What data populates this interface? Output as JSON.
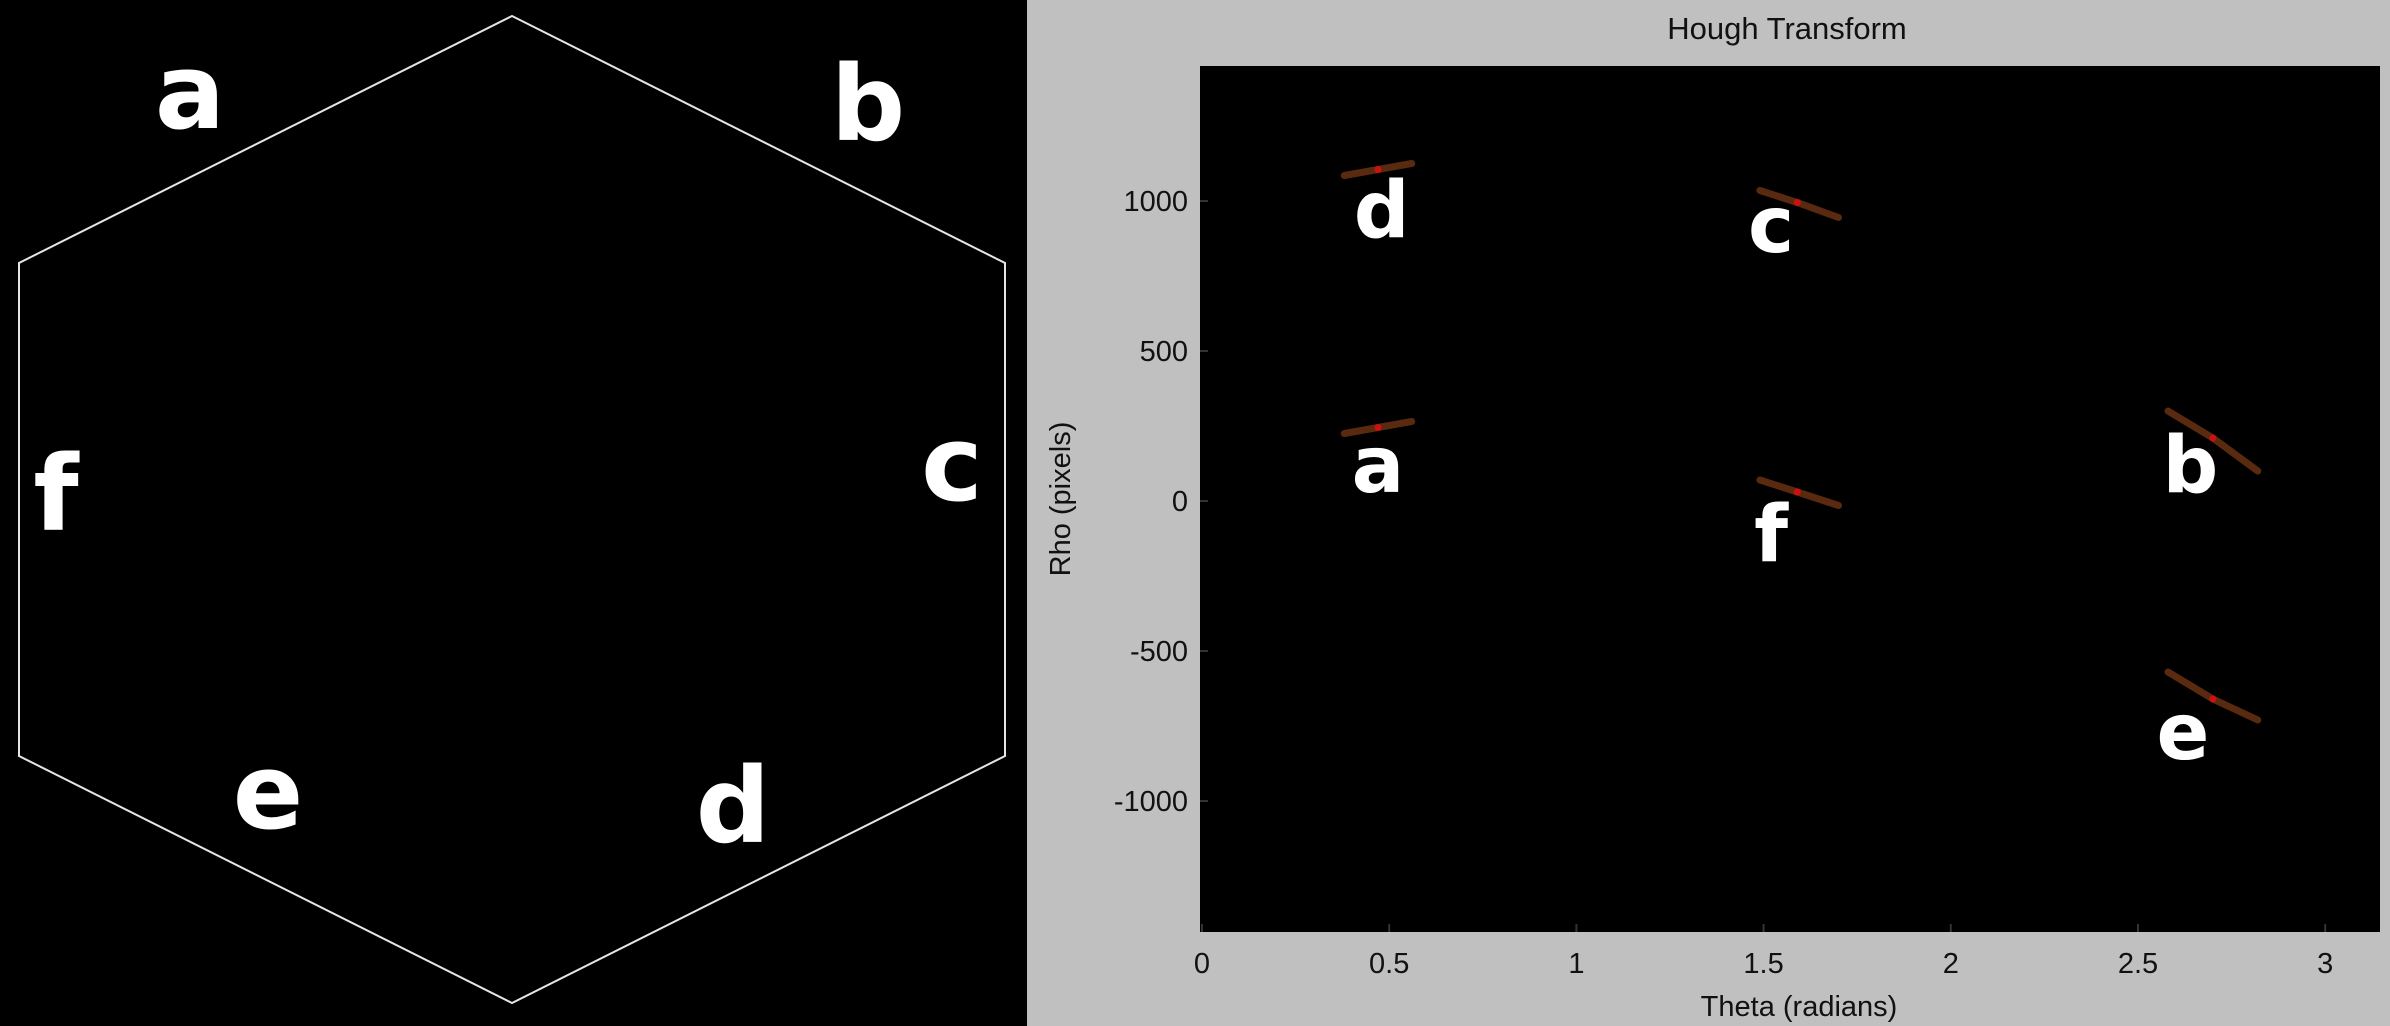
{
  "colors": {
    "background": "#000000",
    "hexagon_stroke": "#e6e6e6",
    "figure_frame": "#c0c0c0",
    "plot_background": "#000000",
    "label_color": "#ffffff",
    "curve_color": "#5a2a10",
    "peak_color": "#d01010",
    "axis_text": "#111111"
  },
  "hexagon": {
    "side_labels": [
      {
        "id": "a",
        "text": "a"
      },
      {
        "id": "b",
        "text": "b"
      },
      {
        "id": "c",
        "text": "c"
      },
      {
        "id": "d",
        "text": "d"
      },
      {
        "id": "e",
        "text": "e"
      },
      {
        "id": "f",
        "text": "f"
      }
    ]
  },
  "chart_data": {
    "type": "scatter",
    "title": "Hough Transform",
    "xlabel": "Theta (radians)",
    "ylabel": "Rho (pixels)",
    "xlim": [
      0,
      3.14
    ],
    "ylim": [
      -1430,
      1430
    ],
    "xticks": [
      0,
      0.5,
      1,
      1.5,
      2,
      2.5,
      3
    ],
    "xtick_labels": [
      "0",
      "0.5",
      "1",
      "1.5",
      "2",
      "2.5",
      "3"
    ],
    "yticks": [
      1000,
      500,
      0,
      -500,
      -1000
    ],
    "ytick_labels": [
      "1000",
      "500",
      "0",
      "-500",
      "-1000"
    ],
    "grid": false,
    "series": [
      {
        "name": "d",
        "points": [
          [
            0.38,
            1085
          ],
          [
            0.47,
            1105
          ],
          [
            0.56,
            1125
          ]
        ],
        "peak": [
          0.47,
          1105
        ],
        "label_at": [
          0.48,
          880
        ]
      },
      {
        "name": "c",
        "points": [
          [
            1.49,
            1035
          ],
          [
            1.59,
            995
          ],
          [
            1.7,
            945
          ]
        ],
        "peak": [
          1.59,
          995
        ],
        "label_at": [
          1.52,
          830
        ]
      },
      {
        "name": "a",
        "points": [
          [
            0.38,
            225
          ],
          [
            0.47,
            245
          ],
          [
            0.56,
            265
          ]
        ],
        "peak": [
          0.47,
          245
        ],
        "label_at": [
          0.47,
          30
        ]
      },
      {
        "name": "f",
        "points": [
          [
            1.49,
            70
          ],
          [
            1.59,
            30
          ],
          [
            1.7,
            -15
          ]
        ],
        "peak": [
          1.59,
          30
        ],
        "label_at": [
          1.52,
          -200
        ]
      },
      {
        "name": "b",
        "points": [
          [
            2.58,
            300
          ],
          [
            2.7,
            210
          ],
          [
            2.82,
            100
          ]
        ],
        "peak": [
          2.7,
          210
        ],
        "label_at": [
          2.64,
          30
        ]
      },
      {
        "name": "e",
        "points": [
          [
            2.58,
            -570
          ],
          [
            2.7,
            -660
          ],
          [
            2.82,
            -730
          ]
        ],
        "peak": [
          2.7,
          -660
        ],
        "label_at": [
          2.62,
          -860
        ]
      }
    ]
  }
}
